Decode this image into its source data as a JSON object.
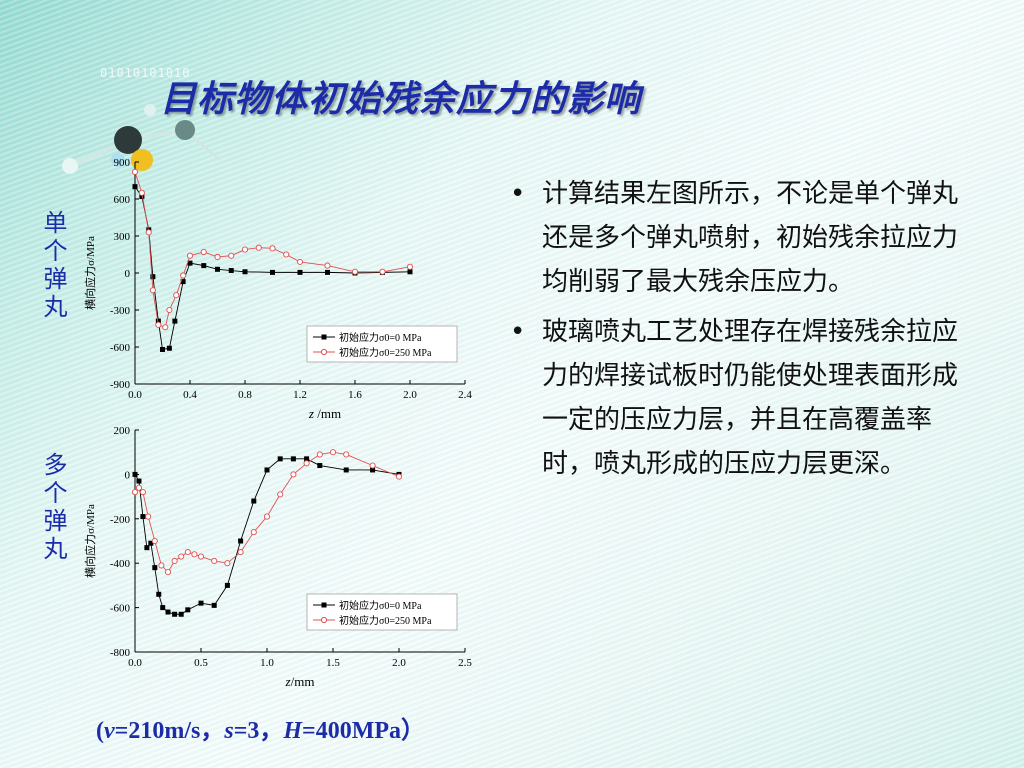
{
  "slide": {
    "title": "目标物体初始残余应力的影响",
    "binary": "01010101010",
    "label_single": "单个弹丸",
    "label_multi": "多个弹丸",
    "params": {
      "open": "(",
      "v": "v",
      "v_val": "=210m/s，",
      "s": "s",
      "s_val": "=3，",
      "H": "H",
      "H_val": "=400MPa",
      "close": "）"
    },
    "bullets": [
      "计算结果左图所示，不论是单个弹丸还是多个弹丸喷射，初始残余拉应力均削弱了最大残余压应力。",
      "玻璃喷丸工艺处理存在焊接残余拉应力的焊接试板时仍能使处理表面形成一定的压应力层，并且在高覆盖率时，喷丸形成的压应力层更深。"
    ],
    "colors": {
      "title": "#1c2ca8",
      "series0": "#000000",
      "series1": "#e05050"
    }
  },
  "chart_data": [
    {
      "type": "line",
      "ylabel": "横向应力σ/MPa",
      "xlabel_var": "z",
      "xlabel_unit": " /mm",
      "xlim": [
        0.0,
        2.4
      ],
      "ylim": [
        -900,
        900
      ],
      "xticks": [
        "0.0",
        "0.4",
        "0.8",
        "1.2",
        "1.6",
        "2.0",
        "2.4"
      ],
      "yticks": [
        "900",
        "600",
        "300",
        "0",
        "-300",
        "-600",
        "-900"
      ],
      "legend_position": "lower-right",
      "series": [
        {
          "name": "初始应力σ0=0 MPa",
          "marker": "filled-square",
          "x": [
            0.0,
            0.05,
            0.1,
            0.13,
            0.17,
            0.2,
            0.25,
            0.29,
            0.35,
            0.4,
            0.5,
            0.6,
            0.7,
            0.8,
            1.0,
            1.2,
            1.4,
            1.6,
            1.8,
            2.0
          ],
          "y": [
            700,
            620,
            350,
            -30,
            -390,
            -620,
            -610,
            -390,
            -70,
            80,
            60,
            30,
            20,
            10,
            5,
            5,
            5,
            0,
            5,
            10
          ]
        },
        {
          "name": "初始应力σ0=250 MPa",
          "marker": "open-circle",
          "x": [
            0.0,
            0.05,
            0.1,
            0.13,
            0.17,
            0.22,
            0.25,
            0.3,
            0.35,
            0.4,
            0.5,
            0.6,
            0.7,
            0.8,
            0.9,
            1.0,
            1.1,
            1.2,
            1.4,
            1.6,
            1.8,
            2.0
          ],
          "y": [
            820,
            650,
            330,
            -140,
            -420,
            -440,
            -300,
            -180,
            -20,
            140,
            170,
            130,
            140,
            190,
            205,
            200,
            150,
            90,
            60,
            10,
            10,
            50
          ]
        }
      ]
    },
    {
      "type": "line",
      "ylabel": "横向应力σ/MPa",
      "xlabel_var": "z",
      "xlabel_unit": "/mm",
      "xlim": [
        0.0,
        2.5
      ],
      "ylim": [
        -800,
        200
      ],
      "xticks": [
        "0.0",
        "0.5",
        "1.0",
        "1.5",
        "2.0",
        "2.5"
      ],
      "yticks": [
        "200",
        "0",
        "-200",
        "-400",
        "-600",
        "-800"
      ],
      "legend_position": "lower-right",
      "series": [
        {
          "name": "初始应力σ0=0 MPa",
          "marker": "filled-square",
          "x": [
            0.0,
            0.03,
            0.06,
            0.09,
            0.12,
            0.15,
            0.18,
            0.21,
            0.25,
            0.3,
            0.35,
            0.4,
            0.5,
            0.6,
            0.7,
            0.8,
            0.9,
            1.0,
            1.1,
            1.2,
            1.3,
            1.4,
            1.6,
            1.8,
            2.0
          ],
          "y": [
            0,
            -30,
            -190,
            -330,
            -310,
            -420,
            -540,
            -600,
            -620,
            -630,
            -630,
            -610,
            -580,
            -590,
            -500,
            -300,
            -120,
            20,
            70,
            70,
            70,
            40,
            20,
            20,
            0
          ]
        },
        {
          "name": "初始应力σ0=250 MPa",
          "marker": "open-circle",
          "x": [
            0.0,
            0.03,
            0.06,
            0.1,
            0.15,
            0.2,
            0.25,
            0.3,
            0.35,
            0.4,
            0.45,
            0.5,
            0.6,
            0.7,
            0.8,
            0.9,
            1.0,
            1.1,
            1.2,
            1.3,
            1.4,
            1.5,
            1.6,
            1.8,
            2.0
          ],
          "y": [
            -80,
            -60,
            -80,
            -190,
            -300,
            -410,
            -440,
            -390,
            -370,
            -350,
            -360,
            -370,
            -390,
            -400,
            -350,
            -260,
            -190,
            -90,
            0,
            50,
            90,
            100,
            90,
            40,
            -10
          ]
        }
      ]
    }
  ]
}
